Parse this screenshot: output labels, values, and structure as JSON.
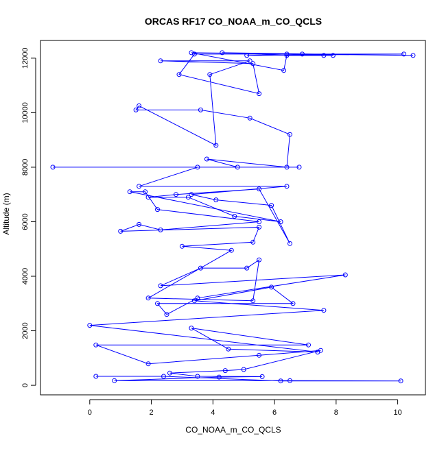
{
  "chart_data": {
    "type": "line",
    "title": "ORCAS RF17 CO_NOAA_m_CO_QCLS",
    "xlabel": "CO_NOAA_m_CO_QCLS",
    "ylabel": "Altitude (m)",
    "xlim": [
      -1.6,
      10.9
    ],
    "ylim": [
      -350,
      12650
    ],
    "xticks": [
      0,
      2,
      4,
      6,
      8,
      10
    ],
    "yticks": [
      0,
      2000,
      4000,
      6000,
      8000,
      10000,
      12000
    ],
    "grid": false,
    "marker": "open-circle",
    "series_color": "#0000ff",
    "series": [
      {
        "points": [
          [
            0.2,
            330
          ],
          [
            2.4,
            330
          ],
          [
            6.2,
            160
          ],
          [
            10.1,
            160
          ],
          [
            6.5,
            170
          ],
          [
            0.8,
            170
          ],
          [
            4.2,
            300
          ],
          [
            5.6,
            320
          ],
          [
            3.5,
            330
          ],
          [
            2.6,
            450
          ],
          [
            4.4,
            540
          ],
          [
            5.0,
            580
          ],
          [
            7.5,
            1280
          ],
          [
            5.5,
            1100
          ],
          [
            1.9,
            790
          ],
          [
            0.2,
            1480
          ],
          [
            7.1,
            1480
          ],
          [
            3.3,
            2100
          ],
          [
            4.5,
            1330
          ],
          [
            7.4,
            1220
          ],
          [
            0.0,
            2200
          ],
          [
            7.6,
            2750
          ],
          [
            3.4,
            3100
          ],
          [
            5.9,
            3600
          ],
          [
            6.6,
            3000
          ],
          [
            2.2,
            3000
          ],
          [
            2.5,
            2600
          ],
          [
            3.5,
            3200
          ],
          [
            8.3,
            4050
          ],
          [
            2.3,
            3650
          ],
          [
            3.6,
            4300
          ],
          [
            5.1,
            4300
          ],
          [
            5.5,
            4600
          ],
          [
            5.3,
            3100
          ],
          [
            1.9,
            3200
          ],
          [
            4.6,
            4950
          ],
          [
            3.0,
            5100
          ],
          [
            5.3,
            5250
          ],
          [
            5.5,
            5800
          ],
          [
            1.0,
            5650
          ],
          [
            1.6,
            5900
          ],
          [
            2.3,
            5700
          ],
          [
            5.5,
            6000
          ],
          [
            2.2,
            6450
          ],
          [
            1.8,
            7100
          ],
          [
            1.3,
            7100
          ],
          [
            6.2,
            6000
          ],
          [
            4.7,
            6200
          ],
          [
            3.2,
            6900
          ],
          [
            1.9,
            6900
          ],
          [
            2.8,
            7000
          ],
          [
            5.5,
            7200
          ],
          [
            6.5,
            5200
          ],
          [
            5.9,
            6600
          ],
          [
            4.1,
            6800
          ],
          [
            3.3,
            7000
          ],
          [
            6.4,
            7300
          ],
          [
            1.6,
            7300
          ],
          [
            3.5,
            8000
          ],
          [
            6.8,
            8000
          ],
          [
            -1.2,
            8000
          ],
          [
            4.8,
            8000
          ],
          [
            3.8,
            8300
          ],
          [
            6.4,
            8000
          ],
          [
            6.5,
            9200
          ],
          [
            5.2,
            9800
          ],
          [
            3.6,
            10100
          ],
          [
            1.5,
            10100
          ],
          [
            1.6,
            10250
          ],
          [
            4.1,
            8800
          ],
          [
            3.9,
            11400
          ],
          [
            5.2,
            11900
          ],
          [
            2.3,
            11900
          ],
          [
            5.3,
            11800
          ],
          [
            5.5,
            10700
          ],
          [
            2.9,
            11400
          ],
          [
            3.4,
            12150
          ],
          [
            10.2,
            12150
          ],
          [
            5.1,
            12100
          ],
          [
            6.4,
            12150
          ],
          [
            7.9,
            12100
          ],
          [
            4.3,
            12200
          ],
          [
            10.5,
            12100
          ],
          [
            6.9,
            12150
          ],
          [
            3.3,
            12200
          ],
          [
            6.3,
            11550
          ],
          [
            6.4,
            12100
          ],
          [
            7.6,
            12100
          ]
        ]
      }
    ]
  }
}
